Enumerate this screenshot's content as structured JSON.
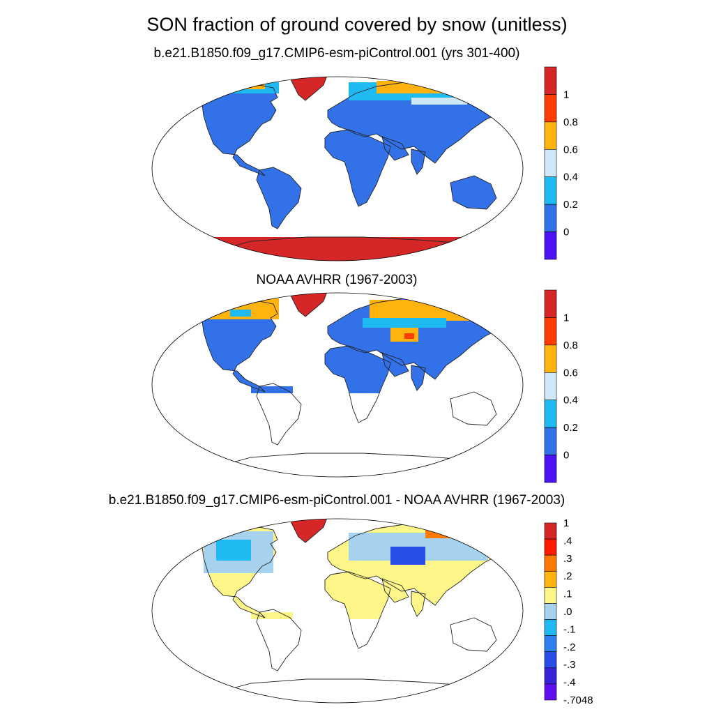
{
  "figure": {
    "title": "SON fraction of ground covered by snow (unitless)"
  },
  "panels": [
    {
      "title": "b.e21.B1850.f09_g17.CMIP6-esm-piControl.001 (yrs 301-400)",
      "colorbar": {
        "labels": [
          "1",
          "0.8",
          "0.6",
          "0.4",
          "0.2",
          "0"
        ],
        "colors": [
          "#d62728",
          "#ff3d00",
          "#ffb30f",
          "#cde8f7",
          "#1fbaf2",
          "#3371e8",
          "#4a14f5"
        ]
      }
    },
    {
      "title": "NOAA AVHRR (1967-2003)",
      "colorbar": {
        "labels": [
          "1",
          "0.8",
          "0.6",
          "0.4",
          "0.2",
          "0"
        ],
        "colors": [
          "#d62728",
          "#ff3d00",
          "#ffb30f",
          "#cde8f7",
          "#1fbaf2",
          "#3371e8",
          "#4a14f5"
        ]
      }
    },
    {
      "title": "b.e21.B1850.f09_g17.CMIP6-esm-piControl.001 - NOAA AVHRR (1967-2003)",
      "colorbar": {
        "labels": [
          "1",
          ".4",
          ".3",
          ".2",
          ".1",
          ".0",
          "-.1",
          "-.2",
          "-.3",
          "-.4",
          "-.7048"
        ],
        "colors": [
          "#d62728",
          "#ff1a00",
          "#ff7a00",
          "#ffb30f",
          "#fff68a",
          "#a6d2ef",
          "#1fbaf2",
          "#2e7ff0",
          "#2a4ee8",
          "#3a24d8",
          "#6010f0"
        ]
      }
    }
  ],
  "colors": {
    "snow_free": "#3371e8",
    "low": "#1fbaf2",
    "mid": "#cde8f7",
    "high": "#ffb30f",
    "vhigh": "#ff3d00",
    "full": "#d62728",
    "diff_zero": "#fff68a",
    "diff_neg": "#a6d2ef",
    "diff_neg_strong": "#2a4ee8"
  }
}
